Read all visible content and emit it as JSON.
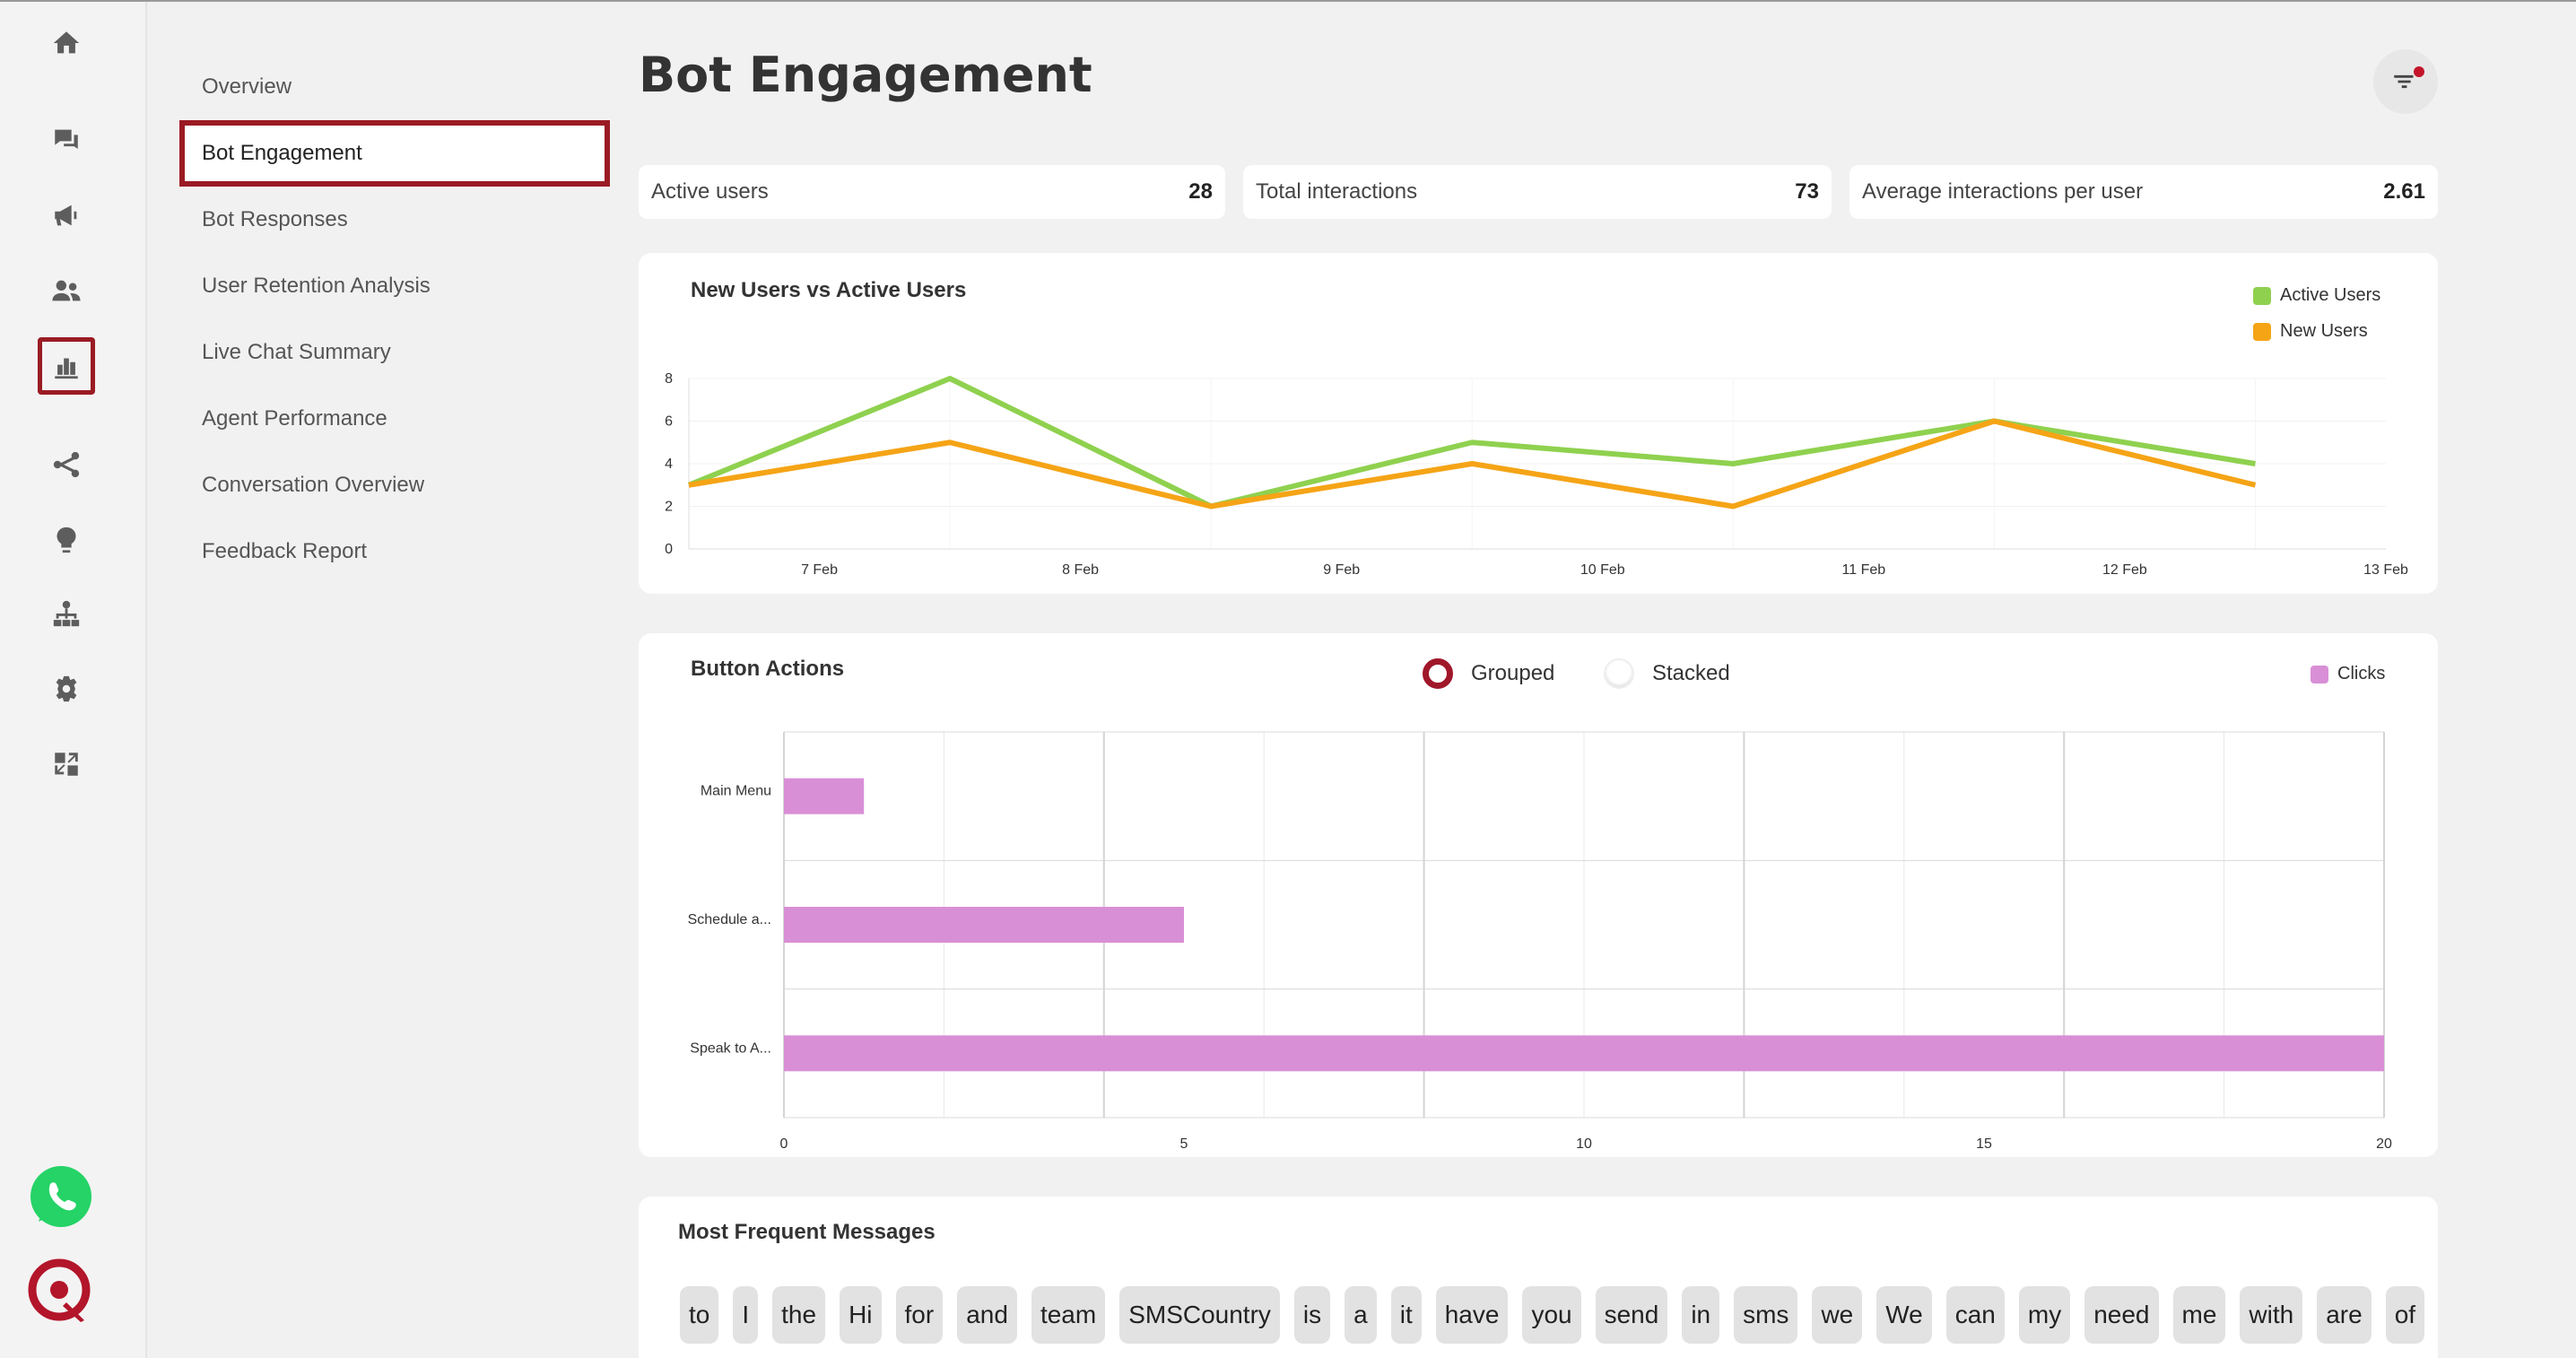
{
  "rail": {
    "icons": [
      "home-icon",
      "chat-icon",
      "megaphone-icon",
      "users-icon",
      "bar-chart-icon",
      "flow-icon",
      "bulb-icon",
      "hierarchy-icon",
      "gear-icon",
      "integration-icon"
    ],
    "active": "bar-chart-icon"
  },
  "subnav": {
    "items": [
      "Overview",
      "Bot Engagement",
      "Bot Responses",
      "User Retention Analysis",
      "Live Chat Summary",
      "Agent Performance",
      "Conversation Overview",
      "Feedback Report"
    ],
    "active": "Bot Engagement"
  },
  "page": {
    "title": "Bot Engagement"
  },
  "stats": [
    {
      "label": "Active users",
      "value": "28"
    },
    {
      "label": "Total interactions",
      "value": "73"
    },
    {
      "label": "Average interactions per user",
      "value": "2.61"
    }
  ],
  "colors": {
    "active_users": "#8fd14f",
    "new_users": "#f5a416",
    "clicks": "#d98fd6",
    "accent": "#9a1b24"
  },
  "line_chart": {
    "title": "New Users vs Active Users",
    "legend": [
      "Active Users",
      "New Users"
    ]
  },
  "bar_chart": {
    "title": "Button Actions",
    "mode_options": [
      "Grouped",
      "Stacked"
    ],
    "selected_mode": "Grouped",
    "legend": [
      "Clicks"
    ]
  },
  "chart_data": [
    {
      "type": "line",
      "title": "New Users vs Active Users",
      "x": [
        0,
        1,
        2,
        3,
        4,
        5,
        6
      ],
      "x_tick_labels": [
        "7 Feb",
        "8 Feb",
        "9 Feb",
        "10 Feb",
        "11 Feb",
        "12 Feb",
        "13 Feb"
      ],
      "x_tick_positions": [
        0.5,
        1.5,
        2.5,
        3.5,
        4.5,
        5.5,
        6.5
      ],
      "series": [
        {
          "name": "Active Users",
          "values": [
            3,
            8,
            2,
            5,
            4,
            6,
            4
          ]
        },
        {
          "name": "New Users",
          "values": [
            3,
            5,
            2,
            4,
            2,
            6,
            3
          ]
        }
      ],
      "ylim": [
        0,
        8
      ],
      "yticks": [
        0,
        2,
        4,
        6,
        8
      ],
      "legend_position": "top-right",
      "grid": true
    },
    {
      "type": "bar",
      "orientation": "horizontal",
      "title": "Button Actions",
      "categories": [
        "Main Menu",
        "Schedule a...",
        "Speak to A..."
      ],
      "series": [
        {
          "name": "Clicks",
          "values": [
            1,
            5,
            20
          ]
        }
      ],
      "xlim": [
        0,
        20
      ],
      "xticks": [
        0,
        5,
        10,
        15,
        20
      ],
      "legend_position": "top-right",
      "grid": true
    }
  ],
  "messages": {
    "title": "Most Frequent Messages",
    "words": [
      "to",
      "I",
      "the",
      "Hi",
      "for",
      "and",
      "team",
      "SMSCountry",
      "is",
      "a",
      "it",
      "have",
      "you",
      "send",
      "in",
      "sms",
      "we",
      "We",
      "can",
      "my",
      "need",
      "me",
      "with",
      "are",
      "of"
    ]
  }
}
